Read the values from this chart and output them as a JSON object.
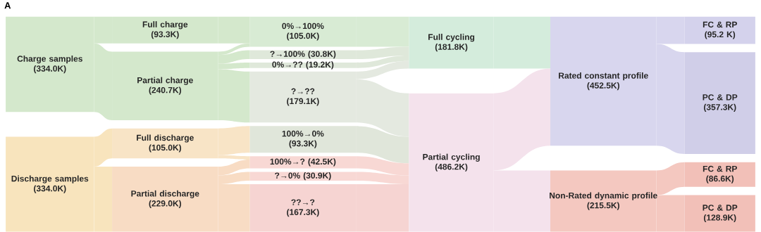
{
  "chart_data": [
    {
      "type": "other",
      "title": "A",
      "categories": [
        "Charge samples",
        "Discharge samples"
      ],
      "values": [
        334.0,
        334.0
      ],
      "value_labels": [
        "(334.0K)",
        "(334.0K)"
      ],
      "colors": [
        "#d4e8cc",
        "#f8e4bd"
      ]
    },
    {
      "type": "other",
      "categories": [
        "Full charge",
        "Partial charge",
        "Full discharge",
        "Partial discharge"
      ],
      "values": [
        93.3,
        240.7,
        105.0,
        229.0
      ],
      "value_labels": [
        "(93.3K)",
        "(240.7K)",
        "(105.0K)",
        "(229.0K)"
      ],
      "colors": [
        "#d4e8cc",
        "#d4e8cc",
        "#f8e4c6",
        "#f8dcc4"
      ]
    },
    {
      "type": "other",
      "categories": [
        "0%→100%",
        "?→100%",
        "0%→??",
        "?→??",
        "100%→0%",
        "100%→?",
        "?→0%",
        "??→?"
      ],
      "values": [
        105.0,
        30.8,
        19.2,
        179.1,
        93.3,
        42.5,
        30.9,
        167.3
      ],
      "value_labels": [
        "(105.0K)",
        "(30.8K)",
        "(19.2K)",
        "(179.1K)",
        "(93.3K)",
        "(42.5K)",
        "(30.9K)",
        "(167.3K)"
      ],
      "colors": [
        "#d8ebd4",
        "#dfe8da",
        "#dfe8da",
        "#e4e9e0",
        "#e0e6da",
        "#f8d8d4",
        "#f8d8d4",
        "#f6d4d2"
      ]
    },
    {
      "type": "other",
      "categories": [
        "Full cycling",
        "Partial cycling"
      ],
      "values": [
        181.8,
        486.2
      ],
      "value_labels": [
        "(181.8K)",
        "(486.2K)"
      ],
      "colors": [
        "#d4ecdc",
        "#f4e2ec"
      ]
    },
    {
      "type": "other",
      "categories": [
        "Rated constant profile",
        "Non-Rated dynamic profile"
      ],
      "values": [
        452.5,
        215.5
      ],
      "value_labels": [
        "(452.5K)",
        "(215.5K)"
      ],
      "colors": [
        "#d8d6ee",
        "#f4c8c0"
      ]
    },
    {
      "type": "other",
      "categories": [
        "FC & RP",
        "PC & DP",
        "FC & RP",
        "PC & DP"
      ],
      "values": [
        95.2,
        357.3,
        86.6,
        128.9
      ],
      "value_labels": [
        "(95.2 K)",
        "(357.3K)",
        "(86.6K)",
        "(128.9K)"
      ],
      "colors": [
        "#d4d2ec",
        "#d0cee8",
        "#f2c0b8",
        "#f2c0b8"
      ]
    }
  ]
}
